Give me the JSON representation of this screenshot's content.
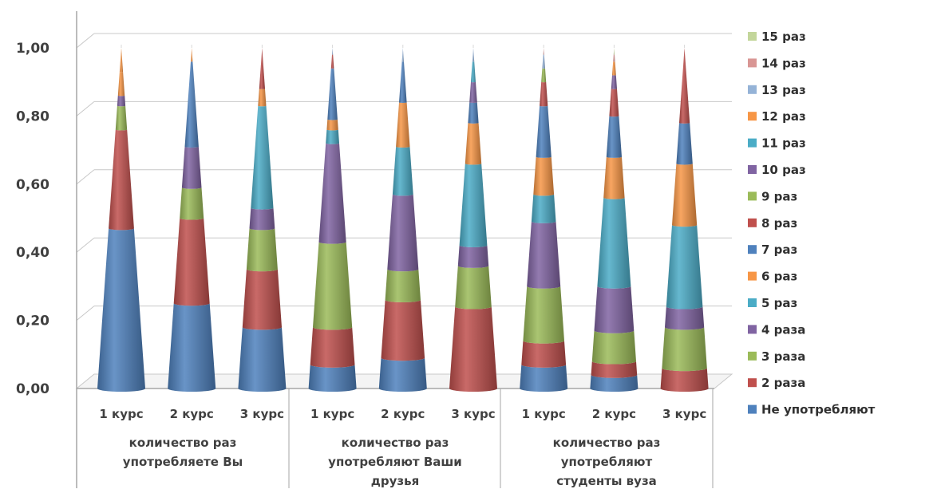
{
  "chart_data": {
    "type": "bar",
    "subtype": "stacked-100-cone",
    "ylim": [
      0,
      1
    ],
    "yticks": [
      "0,00",
      "0,20",
      "0,40",
      "0,60",
      "0,80",
      "1,00"
    ],
    "grid": true,
    "legend_position": "right",
    "groups": [
      {
        "label": "количество раз употребляете Вы",
        "lines": [
          "количество раз",
          "употребляете Вы"
        ]
      },
      {
        "label": "количество раз употребляют Ваши друзья",
        "lines": [
          "количество раз",
          "употребляют Ваши",
          "друзья"
        ]
      },
      {
        "label": "количество раз употребляют студенты вуза",
        "lines": [
          "количество раз",
          "употребляют",
          "студенты вуза"
        ]
      }
    ],
    "categories": [
      "1 курс",
      "2 курс",
      "3 курс",
      "1 курс",
      "2 курс",
      "3 курс",
      "1 курс",
      "2 курс",
      "3 курс"
    ],
    "series": [
      {
        "name": "Не употребляют",
        "color": "#4F81BD",
        "values": [
          0.47,
          0.25,
          0.18,
          0.07,
          0.09,
          0.0,
          0.07,
          0.04,
          0.0
        ]
      },
      {
        "name": "2 раза",
        "color": "#C0504D",
        "values": [
          0.29,
          0.25,
          0.17,
          0.11,
          0.17,
          0.24,
          0.07,
          0.04,
          0.06
        ]
      },
      {
        "name": "3 раза",
        "color": "#9BBB59",
        "values": [
          0.07,
          0.09,
          0.12,
          0.25,
          0.09,
          0.12,
          0.16,
          0.09,
          0.12
        ]
      },
      {
        "name": "4 раза",
        "color": "#8064A2",
        "values": [
          0.03,
          0.12,
          0.06,
          0.29,
          0.22,
          0.06,
          0.19,
          0.13,
          0.06
        ]
      },
      {
        "name": "5 раз",
        "color": "#4BACC6",
        "values": [
          0.0,
          0.0,
          0.3,
          0.04,
          0.14,
          0.24,
          0.08,
          0.26,
          0.24
        ]
      },
      {
        "name": "6 раз",
        "color": "#F79646",
        "values": [
          0.07,
          0.0,
          0.05,
          0.03,
          0.13,
          0.12,
          0.11,
          0.12,
          0.18
        ]
      },
      {
        "name": "7 раз",
        "color": "#4F81BD",
        "values": [
          0.0,
          0.25,
          0.0,
          0.15,
          0.12,
          0.06,
          0.15,
          0.12,
          0.12
        ]
      },
      {
        "name": "8 раз",
        "color": "#C0504D",
        "values": [
          0.0,
          0.0,
          0.12,
          0.04,
          0.0,
          0.0,
          0.07,
          0.08,
          0.22
        ]
      },
      {
        "name": "9 раз",
        "color": "#9BBB59",
        "values": [
          0.0,
          0.0,
          0.0,
          0.0,
          0.0,
          0.0,
          0.04,
          0.0,
          0.0
        ]
      },
      {
        "name": "10 раз",
        "color": "#8064A2",
        "values": [
          0.0,
          0.0,
          0.0,
          0.0,
          0.0,
          0.06,
          0.0,
          0.04,
          0.0
        ]
      },
      {
        "name": "11 раз",
        "color": "#4BACC6",
        "values": [
          0.0,
          0.0,
          0.0,
          0.0,
          0.0,
          0.06,
          0.0,
          0.0,
          0.0
        ]
      },
      {
        "name": "12 раз",
        "color": "#F79646",
        "values": [
          0.07,
          0.04,
          0.0,
          0.0,
          0.0,
          0.0,
          0.0,
          0.04,
          0.0
        ]
      },
      {
        "name": "13 раз",
        "color": "#95B3D7",
        "values": [
          0.0,
          0.0,
          0.0,
          0.02,
          0.04,
          0.04,
          0.04,
          0.0,
          0.0
        ]
      },
      {
        "name": "14 раз",
        "color": "#D99694",
        "values": [
          0.0,
          0.0,
          0.0,
          0.0,
          0.0,
          0.0,
          0.02,
          0.02,
          0.0
        ]
      },
      {
        "name": "15 раз",
        "color": "#C3D69B",
        "values": [
          0.0,
          0.0,
          0.0,
          0.0,
          0.0,
          0.0,
          0.0,
          0.02,
          0.0
        ]
      }
    ]
  }
}
